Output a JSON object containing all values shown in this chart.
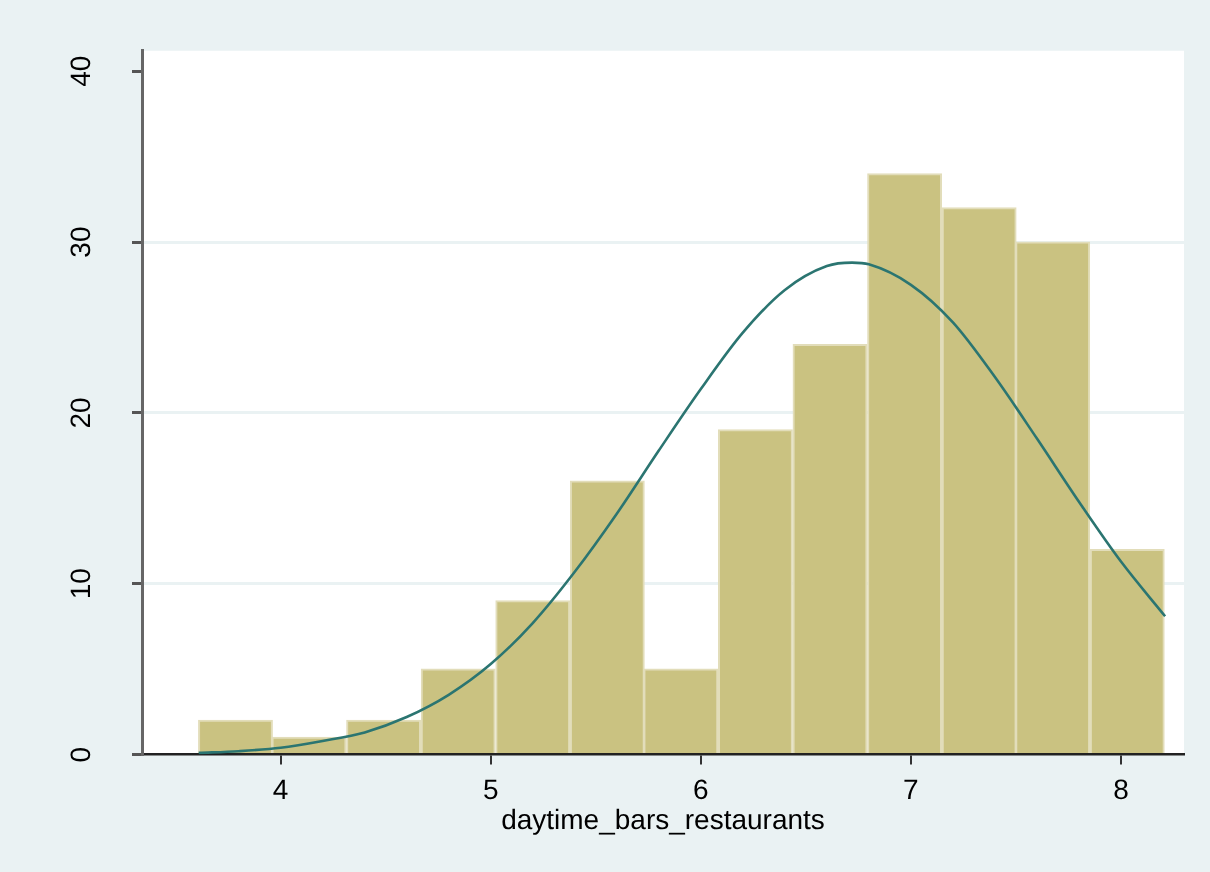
{
  "chart_data": {
    "type": "histogram",
    "xlabel": "daytime_bars_restaurants",
    "bins": [
      3.61,
      3.96,
      4.31,
      4.67,
      5.02,
      5.38,
      5.73,
      6.08,
      6.44,
      6.79,
      7.15,
      7.5,
      7.85,
      8.21
    ],
    "series": [
      {
        "values": [
          2,
          1,
          2,
          5,
          9,
          16,
          5,
          19,
          24,
          34,
          32,
          30,
          12
        ],
        "color": "#cac281"
      },
      {
        "type": "line",
        "color": "#2b7571",
        "x": [
          3.61,
          3.8,
          4.0,
          4.2,
          4.4,
          4.6,
          4.8,
          5.0,
          5.2,
          5.4,
          5.6,
          5.8,
          6.0,
          6.2,
          6.4,
          6.6,
          6.72,
          6.8,
          7.0,
          7.2,
          7.4,
          7.6,
          7.8,
          8.0,
          8.21
        ],
        "values": [
          0.1,
          0.2,
          0.4,
          0.8,
          1.3,
          2.2,
          3.5,
          5.3,
          7.7,
          10.7,
          14.1,
          17.8,
          21.4,
          24.7,
          27.2,
          28.6,
          28.8,
          28.7,
          27.5,
          25.3,
          22.1,
          18.5,
          14.8,
          11.3,
          8.1
        ]
      }
    ],
    "xlim": [
      3.34,
      8.3
    ],
    "ylim": [
      0,
      41.2
    ],
    "xticks": [
      4,
      5,
      6,
      7,
      8
    ],
    "yticks": [
      0,
      10,
      20,
      30,
      40
    ],
    "grid": "y"
  }
}
